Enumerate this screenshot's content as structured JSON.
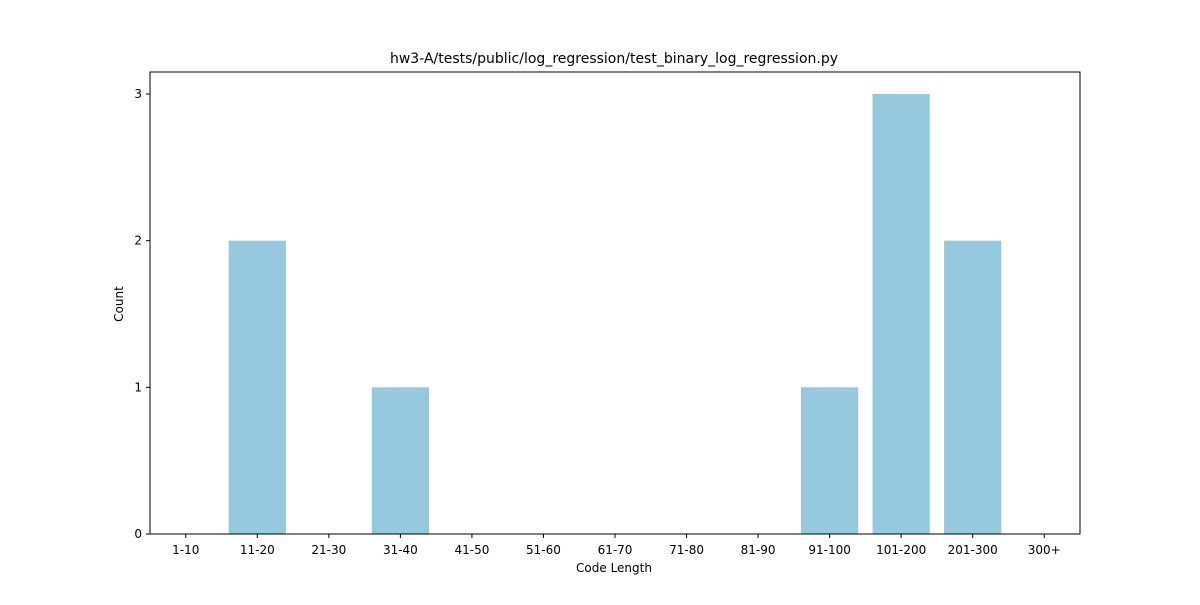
{
  "colors": {
    "bar": "#96c9dd",
    "axis": "#000000",
    "background": "#ffffff"
  },
  "chart_data": {
    "type": "bar",
    "title": "hw3-A/tests/public/log_regression/test_binary_log_regression.py",
    "xlabel": "Code Length",
    "ylabel": "Count",
    "categories": [
      "1-10",
      "11-20",
      "21-30",
      "31-40",
      "41-50",
      "51-60",
      "61-70",
      "71-80",
      "81-90",
      "91-100",
      "101-200",
      "201-300",
      "300+"
    ],
    "values": [
      0,
      2,
      0,
      1,
      0,
      0,
      0,
      0,
      0,
      1,
      3,
      2,
      0
    ],
    "yticks": [
      0,
      1,
      2,
      3
    ],
    "ylim": [
      0,
      3.15
    ],
    "grid": false,
    "legend": "none"
  }
}
